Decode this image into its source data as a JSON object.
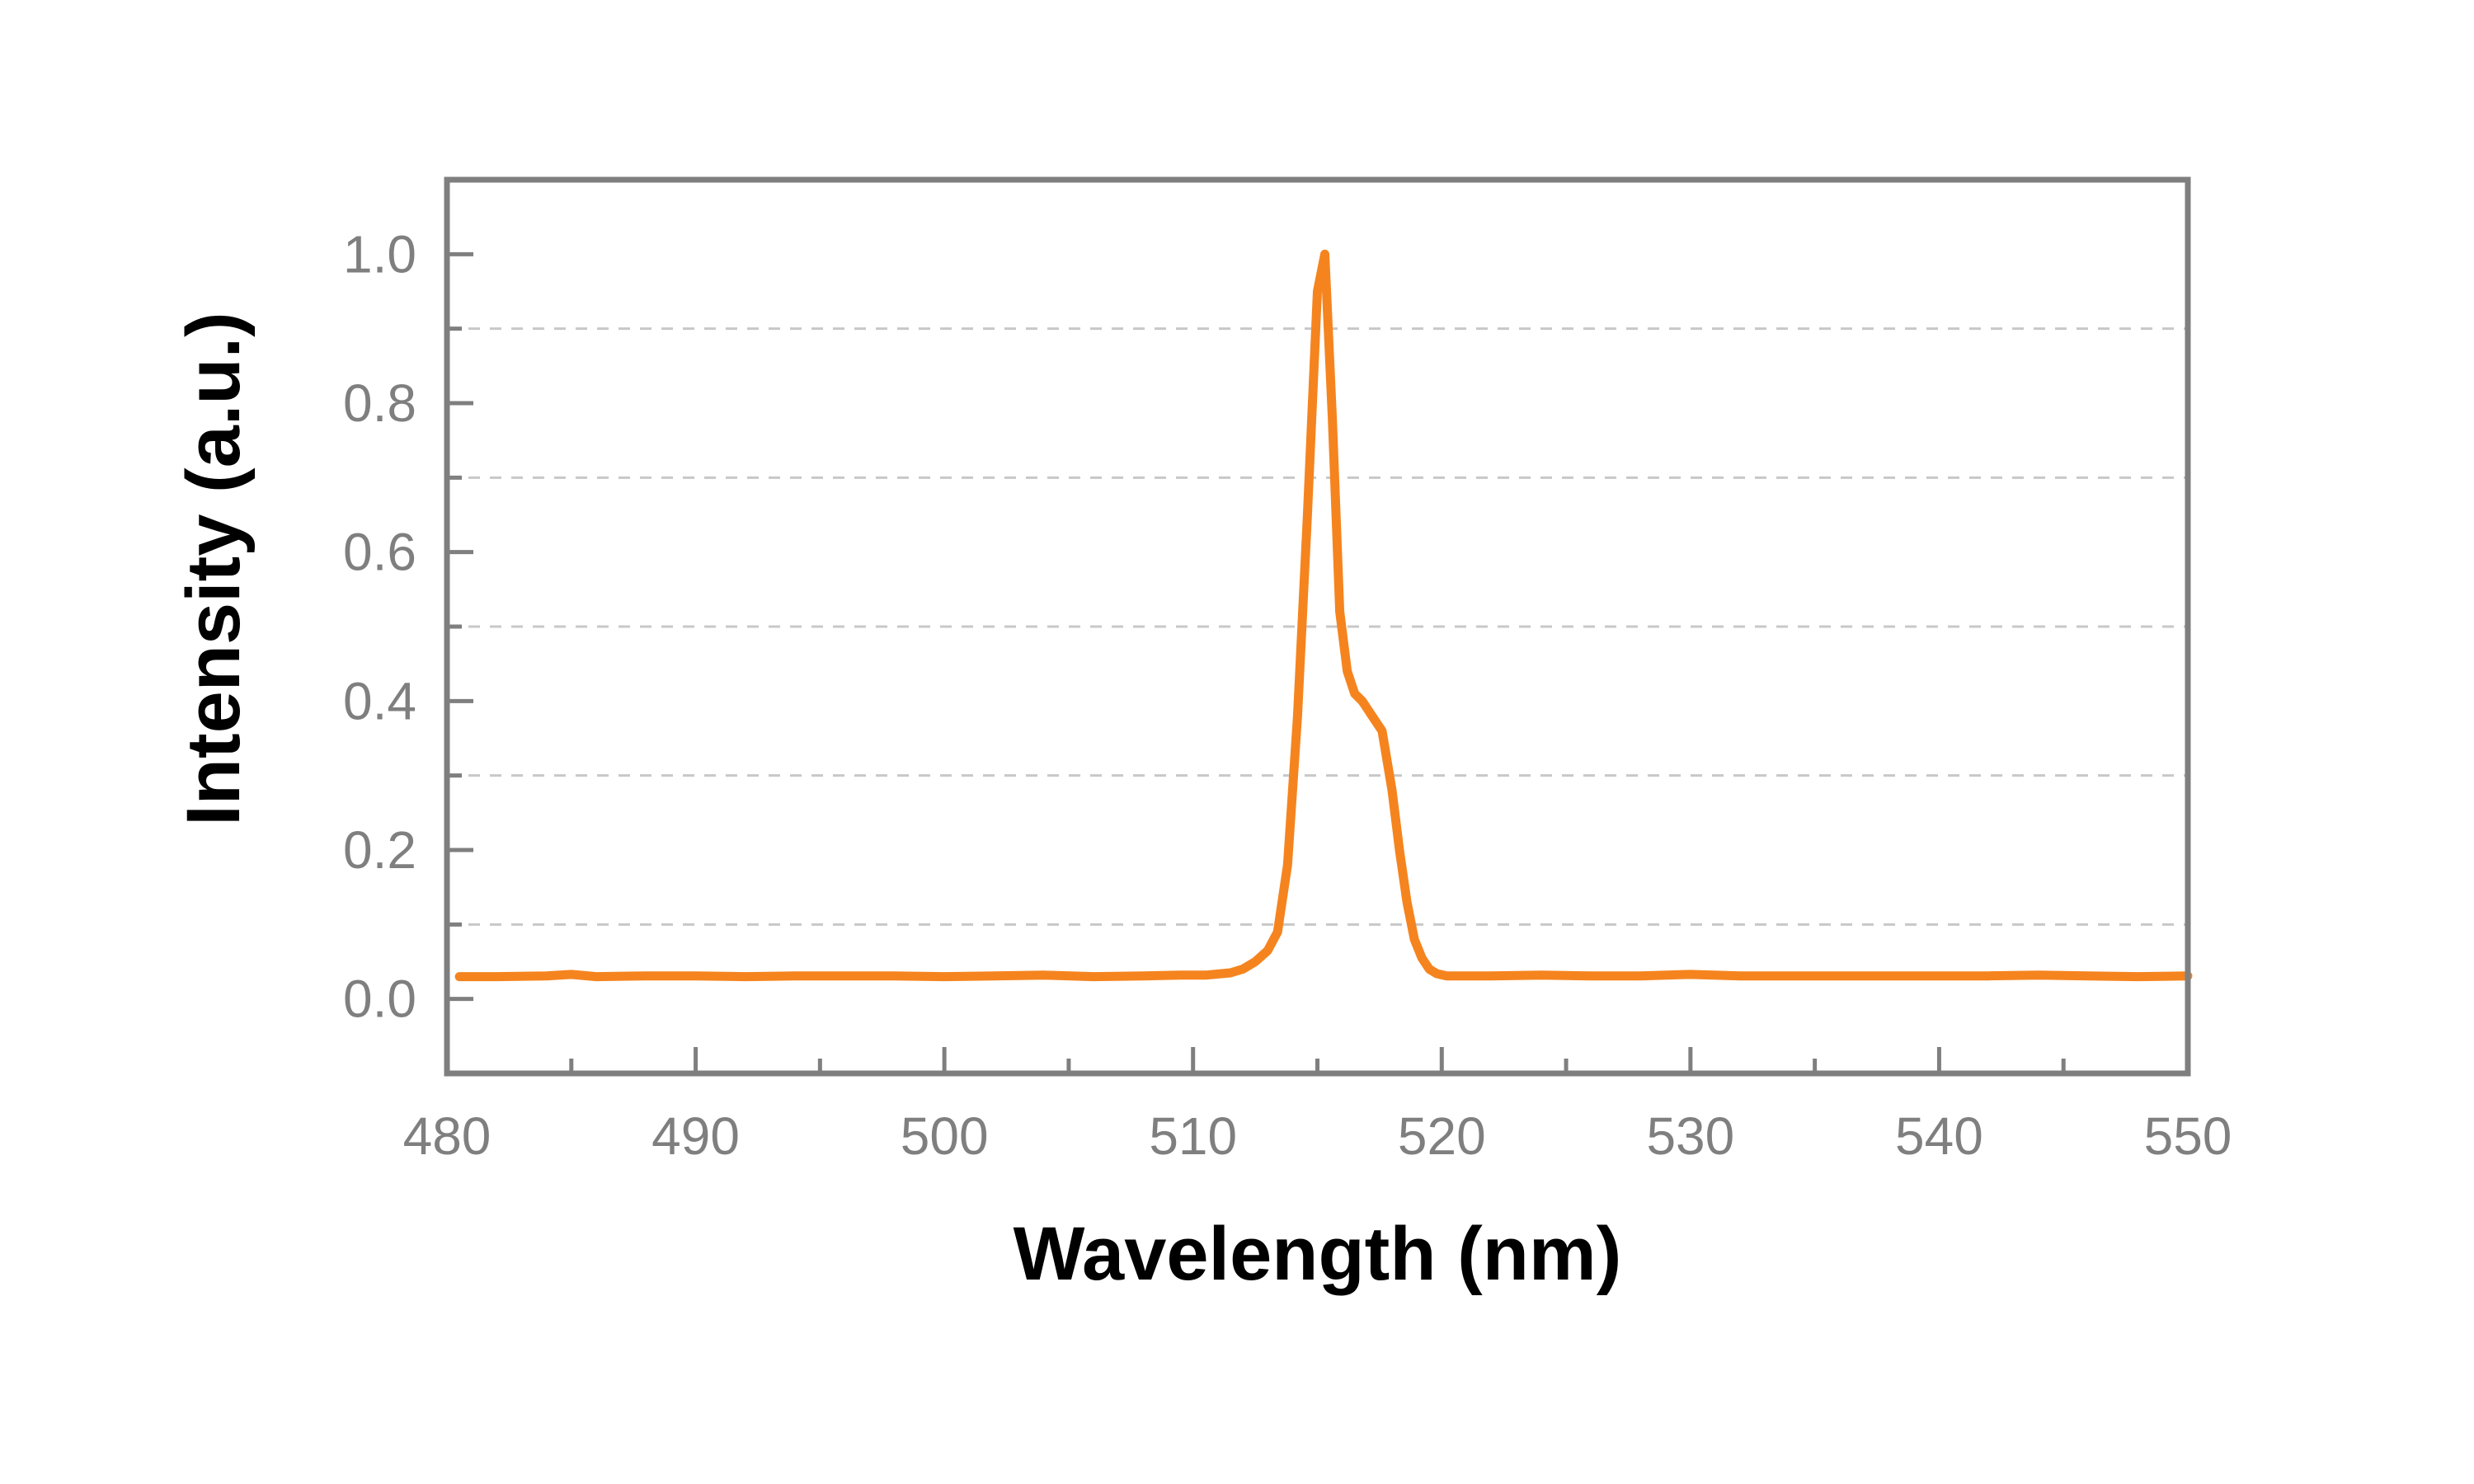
{
  "chart_data": {
    "type": "line",
    "title": "",
    "xlabel": "Wavelength (nm)",
    "ylabel": "Intensity (a.u.)",
    "xlim": [
      480,
      550
    ],
    "ylim": [
      -0.1,
      1.1
    ],
    "x_ticks": [
      480,
      490,
      500,
      510,
      520,
      530,
      540,
      550
    ],
    "x_tick_labels": [
      "480",
      "490",
      "500",
      "510",
      "520",
      "530",
      "540",
      "550"
    ],
    "y_ticks": [
      0.0,
      0.2,
      0.4,
      0.6,
      0.8,
      1.0
    ],
    "y_tick_labels": [
      "0.0",
      "0.2",
      "0.4",
      "0.6",
      "0.8",
      "1.0"
    ],
    "grid": "horizontal dashed at 0.1, 0.3, 0.5, 0.7, 0.9",
    "grid_values": [
      0.1,
      0.3,
      0.5,
      0.7,
      0.9
    ],
    "legend": "none",
    "series": [
      {
        "color": "#f5841f",
        "x": [
          480.5,
          482,
          484,
          485,
          486,
          488,
          490,
          492,
          494,
          496,
          498,
          500,
          502,
          504,
          506,
          508,
          509.5,
          510.5,
          511.5,
          512,
          512.5,
          513,
          513.4,
          513.8,
          514.2,
          514.6,
          515,
          515.3,
          515.6,
          515.9,
          516.2,
          516.5,
          516.8,
          517.2,
          517.6,
          518,
          518.3,
          518.6,
          518.9,
          519.2,
          519.5,
          519.8,
          520.2,
          521,
          522,
          524,
          526,
          528,
          530,
          532,
          534,
          536,
          538,
          540,
          542,
          544,
          546,
          548,
          550
        ],
        "y": [
          0.03,
          0.03,
          0.031,
          0.033,
          0.03,
          0.031,
          0.031,
          0.03,
          0.031,
          0.031,
          0.031,
          0.03,
          0.031,
          0.032,
          0.03,
          0.031,
          0.032,
          0.032,
          0.035,
          0.04,
          0.05,
          0.065,
          0.09,
          0.18,
          0.38,
          0.65,
          0.95,
          1.0,
          0.78,
          0.52,
          0.44,
          0.41,
          0.4,
          0.38,
          0.36,
          0.28,
          0.2,
          0.13,
          0.08,
          0.055,
          0.04,
          0.034,
          0.031,
          0.031,
          0.031,
          0.032,
          0.031,
          0.031,
          0.033,
          0.031,
          0.031,
          0.031,
          0.031,
          0.031,
          0.031,
          0.032,
          0.031,
          0.03,
          0.031
        ]
      }
    ]
  }
}
